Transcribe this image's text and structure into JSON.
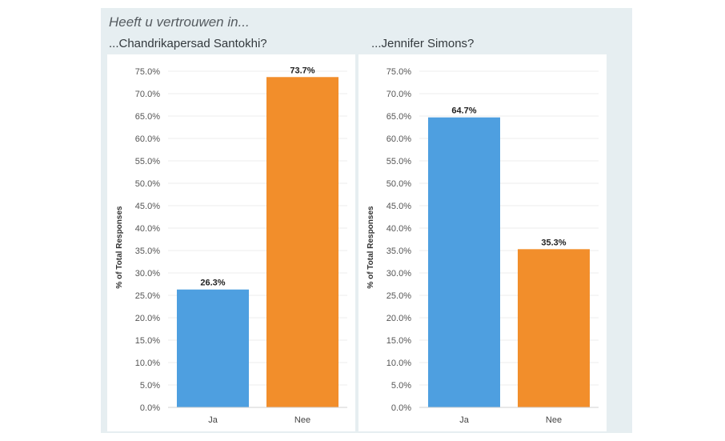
{
  "main_title": "Heeft u vertrouwen in...",
  "colors": {
    "ja": "#4e9fe0",
    "nee": "#f28e2b",
    "background": "#e6eef1"
  },
  "chart_data": [
    {
      "type": "bar",
      "title": "...Chandrikapersad Santokhi?",
      "ylabel": "% of Total Responses",
      "xlabel": "",
      "ylim": [
        0,
        75
      ],
      "yticks": [
        "0.0%",
        "5.0%",
        "10.0%",
        "15.0%",
        "20.0%",
        "25.0%",
        "30.0%",
        "35.0%",
        "40.0%",
        "45.0%",
        "50.0%",
        "55.0%",
        "60.0%",
        "65.0%",
        "70.0%",
        "75.0%"
      ],
      "categories": [
        "Ja",
        "Nee"
      ],
      "values": [
        26.3,
        73.7
      ],
      "data_labels": [
        "26.3%",
        "73.7%"
      ],
      "colors": [
        "#4e9fe0",
        "#f28e2b"
      ],
      "grid": true
    },
    {
      "type": "bar",
      "title": "...Jennifer Simons?",
      "ylabel": "% of Total Responses",
      "xlabel": "",
      "ylim": [
        0,
        75
      ],
      "yticks": [
        "0.0%",
        "5.0%",
        "10.0%",
        "15.0%",
        "20.0%",
        "25.0%",
        "30.0%",
        "35.0%",
        "40.0%",
        "45.0%",
        "50.0%",
        "55.0%",
        "60.0%",
        "65.0%",
        "70.0%",
        "75.0%"
      ],
      "categories": [
        "Ja",
        "Nee"
      ],
      "values": [
        64.7,
        35.3
      ],
      "data_labels": [
        "64.7%",
        "35.3%"
      ],
      "colors": [
        "#4e9fe0",
        "#f28e2b"
      ],
      "grid": true
    }
  ]
}
